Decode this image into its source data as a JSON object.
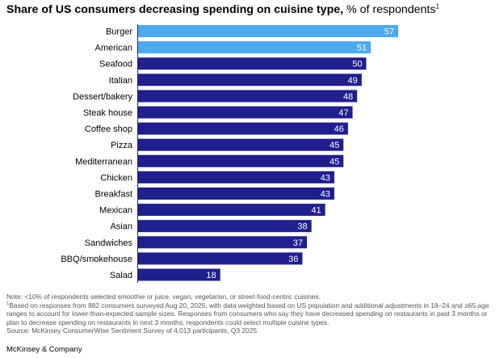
{
  "title_bold": "Share of US consumers decreasing spending on cuisine type,",
  "title_rest": " % of respondents",
  "title_footnote_mark": "1",
  "chart_data": {
    "type": "bar",
    "orientation": "horizontal",
    "title": "Share of US consumers decreasing spending on cuisine type, % of respondents",
    "categories": [
      "Burger",
      "American",
      "Seafood",
      "Italian",
      "Dessert/bakery",
      "Steak house",
      "Coffee shop",
      "Pizza",
      "Mediterranean",
      "Chicken",
      "Breakfast",
      "Mexican",
      "Asian",
      "Sandwiches",
      "BBQ/smokehouse",
      "Salad"
    ],
    "values": [
      57,
      51,
      50,
      49,
      48,
      47,
      46,
      45,
      45,
      43,
      43,
      41,
      38,
      37,
      36,
      18
    ],
    "highlighted": [
      "Burger",
      "American"
    ],
    "colors": {
      "highlight": "#4ea9ee",
      "default": "#1f1f8e",
      "label": "#ffffff"
    },
    "xlim": [
      0,
      57
    ],
    "xlabel": "",
    "ylabel": "",
    "grid": false,
    "legend": "none"
  },
  "notes": {
    "note": "Note: <10% of respondents selected smoothie or juice, vegan, vegetarian, or street-food-centric cuisines.",
    "footnote_mark": "1",
    "footnote": "Based on responses from 882 consumers surveyed Aug 20, 2025, with data weighted based on US population and additional adjustments in 18–24 and ≥65 age ranges to account for lower-than-expected sample sizes. Responses from consumers who say they have decreased spending on restaurants in past 3 months or plan to decrease spending on restaurants in next 3 months; respondents could select multiple cuisine types.",
    "source": "Source: McKinsey ConsumerWise Sentiment Survey of 4,013 participants, Q3 2025"
  },
  "brand": "McKinsey & Company"
}
